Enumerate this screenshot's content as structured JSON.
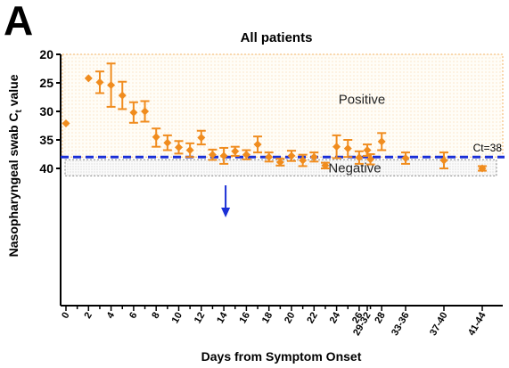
{
  "panel_letter": "A",
  "chart_data": {
    "type": "scatter",
    "title": "All patients",
    "xlabel": "Days from Symptom Onset",
    "ylabel": "Nasopharyngeal swab Ct value",
    "ylim": [
      20,
      41
    ],
    "y_inverted": true,
    "yticks": [
      20,
      25,
      30,
      35,
      40
    ],
    "x_categories": [
      "0",
      "1",
      "2",
      "3",
      "4",
      "5",
      "6",
      "7",
      "8",
      "9",
      "10",
      "11",
      "12",
      "13",
      "14",
      "15",
      "16",
      "17",
      "18",
      "19",
      "20",
      "21",
      "22",
      "23",
      "24",
      "25",
      "26",
      "27",
      "28",
      "29-32",
      "33-36",
      "37-40",
      "41-44"
    ],
    "x_tick_labels_shown": [
      "0",
      "2",
      "4",
      "6",
      "8",
      "10",
      "12",
      "14",
      "16",
      "18",
      "20",
      "22",
      "24",
      "26",
      "28",
      "29-32",
      "33-36",
      "37-40",
      "41-44"
    ],
    "grid": false,
    "legend": "none",
    "marker_color": "#f08c1e",
    "threshold": {
      "value": 38,
      "label": "Ct=38",
      "color": "#1a2fd6"
    },
    "regions": [
      {
        "label": "Positive",
        "from": 20,
        "to": 38,
        "pattern": "orange-dots"
      },
      {
        "label": "Negative",
        "from": 38,
        "to": 41,
        "pattern": "gray-dots"
      }
    ],
    "annotation": {
      "type": "arrow",
      "x": "14",
      "color": "#1a2fd6"
    },
    "series": [
      {
        "points": [
          {
            "x": "0",
            "y": 32.1
          },
          {
            "x": "2",
            "y": 24.2,
            "lo": 24.2,
            "hi": 24.2
          },
          {
            "x": "3",
            "y": 24.9,
            "lo": 23.0,
            "hi": 26.8
          },
          {
            "x": "4",
            "y": 25.4,
            "lo": 21.6,
            "hi": 29.2
          },
          {
            "x": "5",
            "y": 27.2,
            "lo": 24.8,
            "hi": 29.6
          },
          {
            "x": "6",
            "y": 30.2,
            "lo": 28.4,
            "hi": 32.0
          },
          {
            "x": "7",
            "y": 30.0,
            "lo": 28.2,
            "hi": 31.8
          },
          {
            "x": "8",
            "y": 34.5,
            "lo": 33.0,
            "hi": 36.2
          },
          {
            "x": "9",
            "y": 35.5,
            "lo": 34.2,
            "hi": 36.8
          },
          {
            "x": "10",
            "y": 36.3,
            "lo": 35.2,
            "hi": 37.4
          },
          {
            "x": "11",
            "y": 36.8,
            "lo": 35.6,
            "hi": 38.0
          },
          {
            "x": "12",
            "y": 34.6,
            "lo": 33.4,
            "hi": 35.8
          },
          {
            "x": "13",
            "y": 37.6,
            "lo": 36.7,
            "hi": 38.5
          },
          {
            "x": "14",
            "y": 37.8,
            "lo": 36.4,
            "hi": 39.2
          },
          {
            "x": "15",
            "y": 37.0,
            "lo": 36.2,
            "hi": 37.8
          },
          {
            "x": "16",
            "y": 37.6,
            "lo": 36.8,
            "hi": 38.4
          },
          {
            "x": "17",
            "y": 35.8,
            "lo": 34.4,
            "hi": 37.2
          },
          {
            "x": "18",
            "y": 38.0,
            "lo": 37.2,
            "hi": 38.8
          },
          {
            "x": "19",
            "y": 38.9,
            "lo": 38.3,
            "hi": 39.5
          },
          {
            "x": "20",
            "y": 37.8,
            "lo": 36.9,
            "hi": 38.7
          },
          {
            "x": "21",
            "y": 38.6,
            "lo": 37.6,
            "hi": 39.6
          },
          {
            "x": "22",
            "y": 38.0,
            "lo": 37.2,
            "hi": 38.8
          },
          {
            "x": "23",
            "y": 39.5,
            "lo": 39.0,
            "hi": 40.0
          },
          {
            "x": "24",
            "y": 36.2,
            "lo": 34.2,
            "hi": 38.2
          },
          {
            "x": "25",
            "y": 36.5,
            "lo": 35.0,
            "hi": 38.0
          },
          {
            "x": "26",
            "y": 38.1,
            "lo": 37.0,
            "hi": 39.2
          },
          {
            "x": "27",
            "y": 38.4,
            "lo": 37.5,
            "hi": 39.3
          },
          {
            "x": "28",
            "y": 35.3,
            "lo": 33.8,
            "hi": 36.8
          },
          {
            "x": "29-32",
            "y": 36.8,
            "lo": 35.8,
            "hi": 37.8
          },
          {
            "x": "33-36",
            "y": 38.2,
            "lo": 37.2,
            "hi": 39.2
          },
          {
            "x": "37-40",
            "y": 38.6,
            "lo": 37.2,
            "hi": 40.0
          },
          {
            "x": "41-44",
            "y": 40.0,
            "lo": 39.6,
            "hi": 40.4
          }
        ]
      }
    ]
  }
}
